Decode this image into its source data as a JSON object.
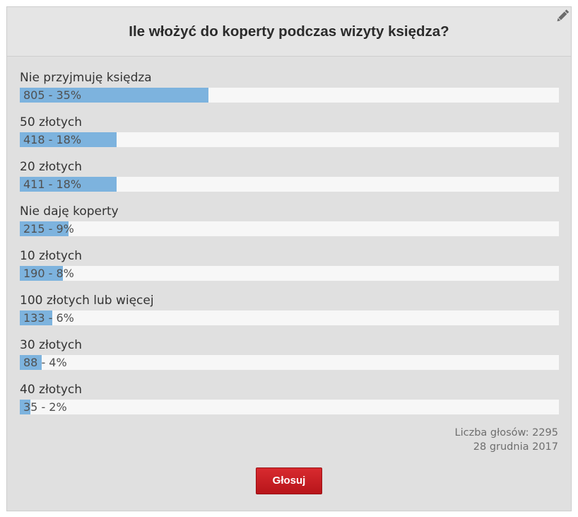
{
  "poll": {
    "title": "Ile włożyć do koperty podczas wizyty księdza?",
    "edit_icon": "pencil-icon",
    "options": [
      {
        "label": "Nie przyjmuję księdza",
        "votes": 805,
        "percent": 35,
        "result": "805 - 35%"
      },
      {
        "label": "50 złotych",
        "votes": 418,
        "percent": 18,
        "result": "418 - 18%"
      },
      {
        "label": "20 złotych",
        "votes": 411,
        "percent": 18,
        "result": "411 - 18%"
      },
      {
        "label": "Nie daję koperty",
        "votes": 215,
        "percent": 9,
        "result": "215 - 9%"
      },
      {
        "label": "10 złotych",
        "votes": 190,
        "percent": 8,
        "result": "190 - 8%"
      },
      {
        "label": "100 złotych lub więcej",
        "votes": 133,
        "percent": 6,
        "result": "133 - 6%"
      },
      {
        "label": "30 złotych",
        "votes": 88,
        "percent": 4,
        "result": "88 - 4%"
      },
      {
        "label": "40 złotych",
        "votes": 35,
        "percent": 2,
        "result": "35 - 2%"
      }
    ],
    "total_votes_text": "Liczba głosów: 2295",
    "date_text": "28 grudnia 2017",
    "vote_button_label": "Głosuj"
  },
  "colors": {
    "bar_fill": "#7db3de",
    "bar_track": "#f7f7f7",
    "panel_background": "#e0e0e0",
    "button": "#c81e23"
  }
}
